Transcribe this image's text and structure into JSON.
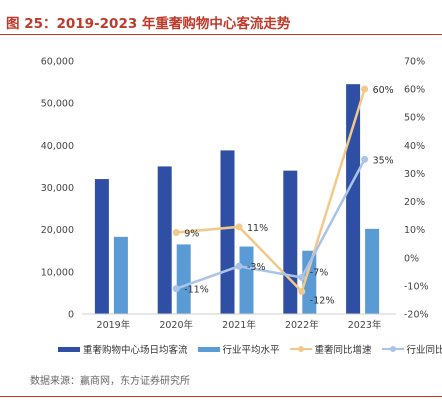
{
  "figure": {
    "title": "图 25：2019-2023 年重奢购物中心客流走势",
    "source": "数据来源：赢商网，东方证券研究所"
  },
  "chart_data": {
    "type": "bar",
    "categories": [
      "2019年",
      "2020年",
      "2021年",
      "2022年",
      "2023年"
    ],
    "series": [
      {
        "name": "重奢购物中心场日均客流",
        "kind": "bar",
        "axis": "left",
        "color": "#2e4fa3",
        "values": [
          32000,
          35000,
          38800,
          34000,
          54500
        ]
      },
      {
        "name": "行业平均水平",
        "kind": "bar",
        "axis": "left",
        "color": "#5b9bd5",
        "values": [
          18300,
          16500,
          16000,
          15000,
          20200
        ]
      },
      {
        "name": "重奢同比增速",
        "kind": "line",
        "axis": "right",
        "color": "#f2c98a",
        "values": [
          null,
          9,
          11,
          -12,
          60
        ],
        "labels": [
          "",
          "9%",
          "11%",
          "-12%",
          "60%"
        ]
      },
      {
        "name": "行业同比增速",
        "kind": "line",
        "axis": "right",
        "color": "#a9c4e8",
        "values": [
          null,
          -11,
          -3,
          -7,
          35
        ],
        "labels": [
          "",
          "-11%",
          "-3%",
          "-7%",
          "35%"
        ]
      }
    ],
    "y_left": {
      "min": 0,
      "max": 60000,
      "ticks": [
        "0",
        "10,000",
        "20,000",
        "30,000",
        "40,000",
        "50,000",
        "60,000"
      ]
    },
    "y_right": {
      "min": -20,
      "max": 70,
      "ticks": [
        "-20%",
        "-10%",
        "0%",
        "10%",
        "20%",
        "30%",
        "40%",
        "50%",
        "60%",
        "70%"
      ]
    },
    "grid": false,
    "legend_position": "bottom"
  }
}
